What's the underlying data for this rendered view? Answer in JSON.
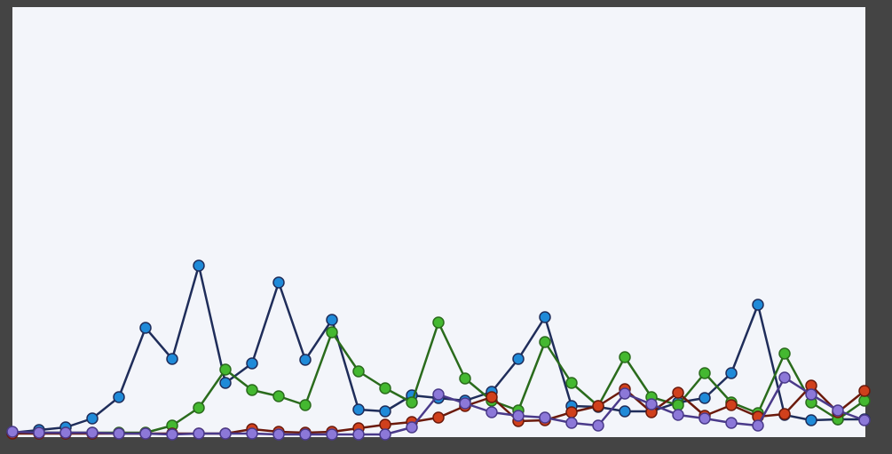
{
  "chart_data": {
    "type": "line",
    "ylim": [
      0,
      480
    ],
    "series": [
      {
        "color": "#1f2d5a",
        "marker": "#1f8ad8",
        "values": [
          3,
          6,
          9,
          19,
          43,
          121,
          86,
          191,
          59,
          81,
          172,
          85,
          130,
          29,
          27,
          45,
          42,
          39,
          49,
          86,
          133,
          33,
          32,
          27,
          27,
          37,
          42,
          70,
          147,
          23,
          17,
          18,
          18
        ]
      },
      {
        "color": "#2a6b1c",
        "marker": "#44b830",
        "values": [
          3,
          3,
          3,
          3,
          3,
          3,
          11,
          31,
          74,
          51,
          44,
          34,
          116,
          72,
          53,
          37,
          127,
          64,
          39,
          28,
          105,
          59,
          33,
          88,
          43,
          34,
          70,
          37,
          25,
          92,
          37,
          18,
          39
        ]
      },
      {
        "color": "#6b1a0c",
        "marker": "#d0401c",
        "values": [
          2,
          2,
          2,
          2,
          2,
          2,
          2,
          2,
          2,
          7,
          4,
          3,
          4,
          8,
          12,
          15,
          20,
          33,
          43,
          16,
          17,
          26,
          33,
          52,
          26,
          48,
          22,
          34,
          21,
          24,
          56,
          26,
          50
        ]
      },
      {
        "color": "#4a3a8a",
        "marker": "#8c78d8",
        "values": [
          4,
          3,
          3,
          3,
          2,
          2,
          1,
          2,
          2,
          2,
          1,
          1,
          1,
          1,
          1,
          9,
          46,
          36,
          26,
          22,
          20,
          14,
          11,
          47,
          35,
          23,
          19,
          14,
          11,
          65,
          46,
          28,
          17
        ]
      }
    ]
  }
}
